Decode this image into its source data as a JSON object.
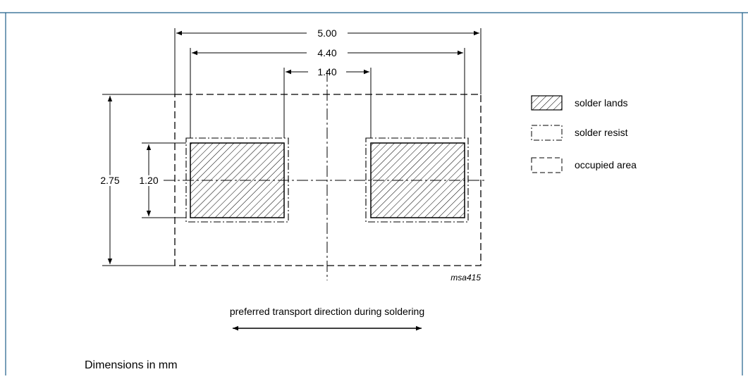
{
  "dimensions": {
    "total_width": "5.00",
    "land_span": "4.40",
    "gap": "1.40",
    "total_height": "2.75",
    "land_height": "1.20"
  },
  "legend": {
    "solder_lands": "solder lands",
    "solder_resist": "solder resist",
    "occupied_area": "occupied area"
  },
  "drawing_code": "msa415",
  "transport_note": "preferred transport direction during soldering",
  "units_note": "Dimensions in mm",
  "colors": {
    "frame": "#1f5f8a",
    "ink": "#000000"
  }
}
